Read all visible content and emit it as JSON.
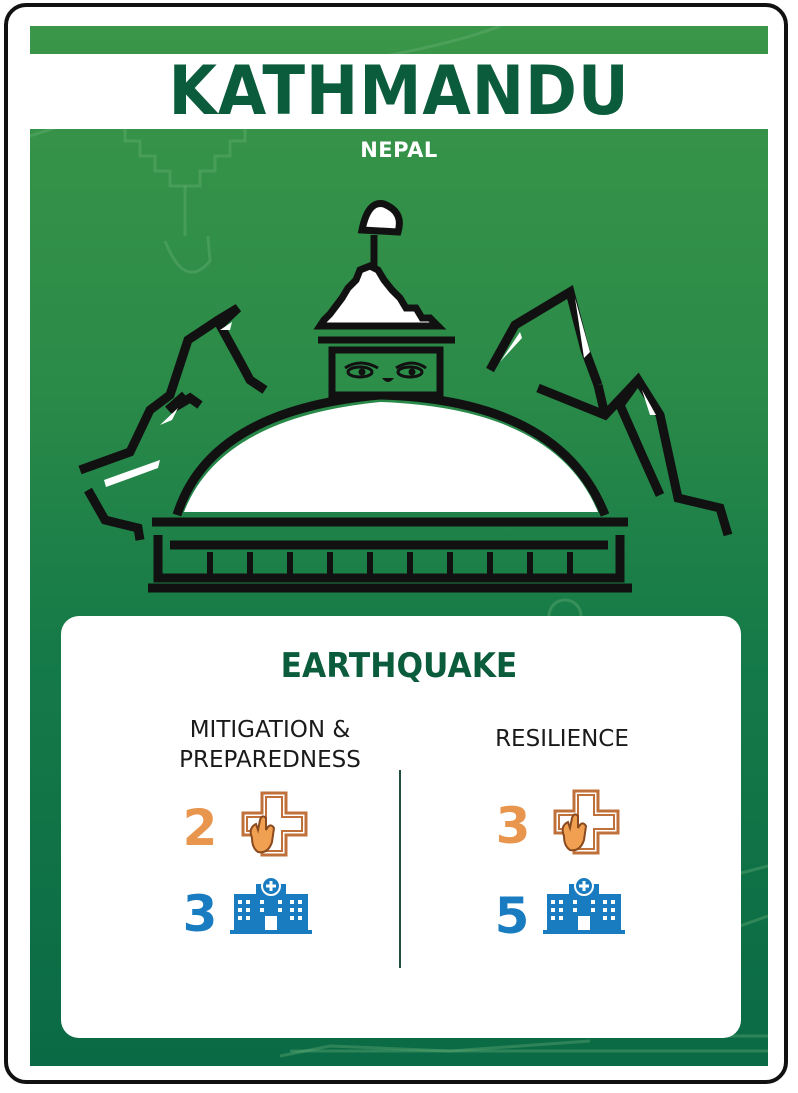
{
  "card": {
    "city": "KATHMANDU",
    "country": "NEPAL",
    "illustration": "boudhanath-stupa-mountains-icon",
    "hazard": "EARTHQUAKE",
    "colors": {
      "panel_green_top": "#3a9648",
      "panel_green_bottom": "#0a6a45",
      "title_green": "#0b5c3c",
      "orange": "#e8954e",
      "blue": "#1a7cc0"
    },
    "columns": [
      {
        "heading_line1": "MITIGATION &",
        "heading_line2": "PREPAREDNESS",
        "stats": [
          {
            "value": "2",
            "icon": "medical-hand-icon"
          },
          {
            "value": "3",
            "icon": "hospital-icon"
          }
        ]
      },
      {
        "heading_line1": "RESILIENCE",
        "stats": [
          {
            "value": "3",
            "icon": "medical-hand-icon"
          },
          {
            "value": "5",
            "icon": "hospital-icon"
          }
        ]
      }
    ]
  }
}
